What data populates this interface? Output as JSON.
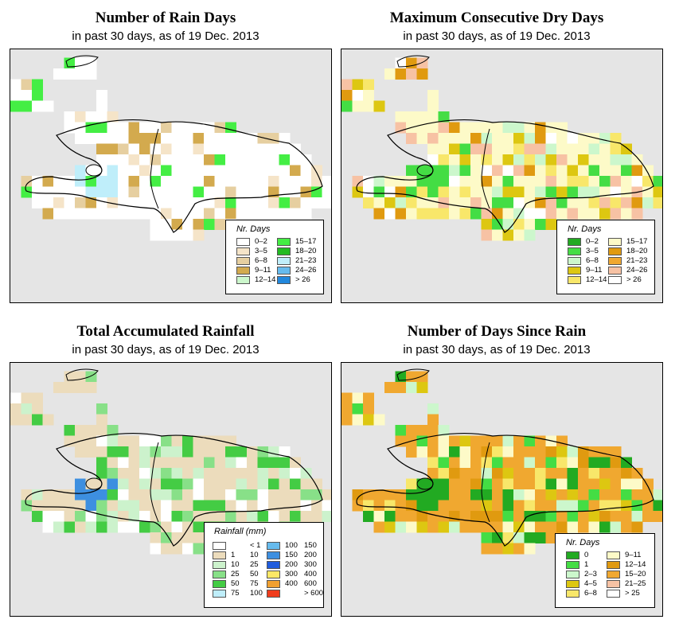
{
  "panels": [
    {
      "title": "Number of Rain Days",
      "subtitle": "in past 30 days, as of  19 Dec. 2013",
      "legend": {
        "title": "Nr. Days",
        "items": [
          {
            "label": "0–2",
            "color": "#ffffff"
          },
          {
            "label": "3–5",
            "color": "#f5e4c8"
          },
          {
            "label": "6–8",
            "color": "#e6cfa0"
          },
          {
            "label": "9–11",
            "color": "#d3aa4e"
          },
          {
            "label": "12–14",
            "color": "#ccf7cc"
          },
          {
            "label": "15–17",
            "color": "#44ee44"
          },
          {
            "label": "18–20",
            "color": "#22bb22"
          },
          {
            "label": "21–23",
            "color": "#bfeefa"
          },
          {
            "label": "24–26",
            "color": "#66bbee"
          },
          {
            "label": "> 26",
            "color": "#2288dd"
          }
        ]
      }
    },
    {
      "title": "Maximum Consecutive Dry Days",
      "subtitle": "in past 30 days, as of  19 Dec. 2013",
      "legend": {
        "title": "Nr. Days",
        "items": [
          {
            "label": "0–2",
            "color": "#22aa22"
          },
          {
            "label": "3–5",
            "color": "#44dd44"
          },
          {
            "label": "6–8",
            "color": "#ccf7cc"
          },
          {
            "label": "9–11",
            "color": "#ddc711"
          },
          {
            "label": "12–14",
            "color": "#f8e76a"
          },
          {
            "label": "15–17",
            "color": "#fdfac8"
          },
          {
            "label": "18–20",
            "color": "#e09a10"
          },
          {
            "label": "21–23",
            "color": "#f0a830"
          },
          {
            "label": "24–26",
            "color": "#f7c2a4"
          },
          {
            "label": "> 26",
            "color": "#ffffff"
          }
        ]
      }
    },
    {
      "title": "Total Accumulated Rainfall",
      "subtitle": "in past 30 days, as of  19 Dec. 2013",
      "legend": {
        "title": "Rainfall (mm)",
        "items": [
          {
            "lo": "",
            "hi": "< 1",
            "color": "#ffffff"
          },
          {
            "lo": "1",
            "hi": "10",
            "color": "#ecdcbc"
          },
          {
            "lo": "10",
            "hi": "25",
            "color": "#ccf2cc"
          },
          {
            "lo": "25",
            "hi": "50",
            "color": "#88e088"
          },
          {
            "lo": "50",
            "hi": "75",
            "color": "#44cc44"
          },
          {
            "lo": "75",
            "hi": "100",
            "color": "#bfeefa"
          },
          {
            "lo": "100",
            "hi": "150",
            "color": "#66bbee"
          },
          {
            "lo": "150",
            "hi": "200",
            "color": "#3d8fe0"
          },
          {
            "lo": "200",
            "hi": "300",
            "color": "#1f5cdd"
          },
          {
            "lo": "300",
            "hi": "400",
            "color": "#fde866"
          },
          {
            "lo": "400",
            "hi": "600",
            "color": "#f0a030"
          },
          {
            "lo": "",
            "hi": "> 600",
            "color": "#f03c1c"
          }
        ]
      }
    },
    {
      "title": "Number of Days Since Rain",
      "subtitle": "in past 30 days, as of  19 Dec. 2013",
      "legend": {
        "title": "Nr. Days",
        "items": [
          {
            "label": "0",
            "color": "#22aa22"
          },
          {
            "label": "1",
            "color": "#44dd44"
          },
          {
            "label": "2–3",
            "color": "#ccf7cc"
          },
          {
            "label": "4–5",
            "color": "#ddc711"
          },
          {
            "label": "6–8",
            "color": "#f8e76a"
          },
          {
            "label": "9–11",
            "color": "#fdfac8"
          },
          {
            "label": "12–14",
            "color": "#e09a10"
          },
          {
            "label": "15–20",
            "color": "#f0a830"
          },
          {
            "label": "21–25",
            "color": "#f7c2a4"
          },
          {
            "label": "> 25",
            "color": "#ffffff"
          }
        ]
      }
    }
  ]
}
